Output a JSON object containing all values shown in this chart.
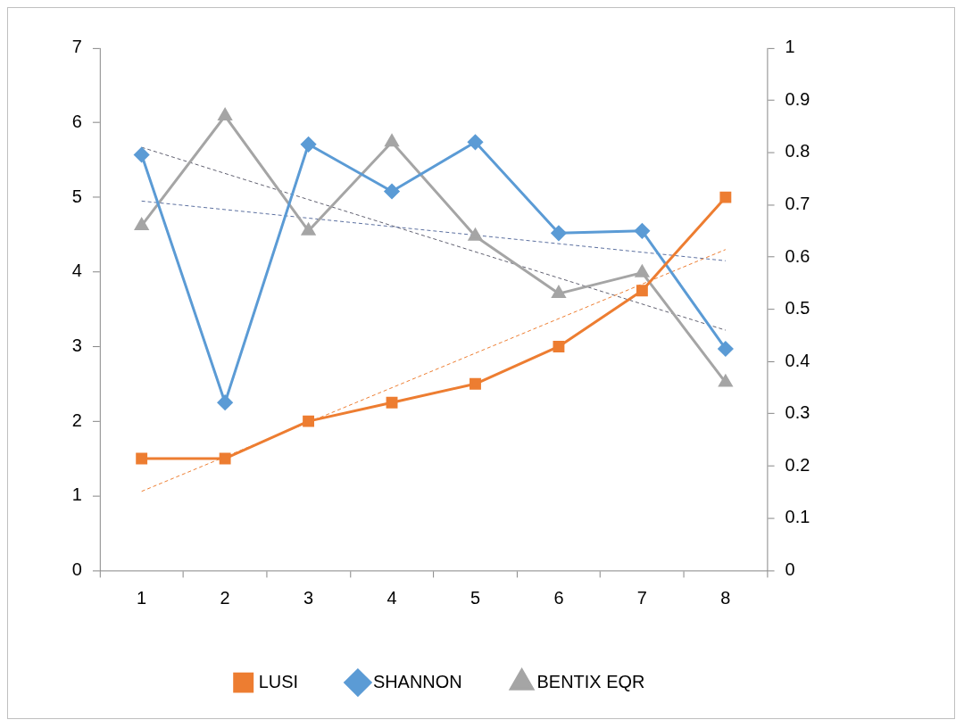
{
  "chart_data": {
    "type": "line",
    "categories": [
      "1",
      "2",
      "3",
      "4",
      "5",
      "6",
      "7",
      "8"
    ],
    "series": [
      {
        "name": "LUSI",
        "color": "#ed7d31",
        "marker": "square",
        "values": [
          1.5,
          1.5,
          2,
          2.25,
          2.5,
          3,
          3.75,
          5
        ]
      },
      {
        "name": "SHANNON",
        "color": "#5b9bd5",
        "marker": "diamond",
        "values": [
          5.57,
          2.25,
          5.71,
          5.08,
          5.74,
          4.52,
          4.55,
          2.97
        ]
      },
      {
        "name": "BENTIX EQR",
        "color": "#a5a5a5",
        "marker": "triangle",
        "axis": "y2",
        "values": [
          0.66,
          0.87,
          0.65,
          0.82,
          0.64,
          0.53,
          0.57,
          0.36
        ]
      },
      {
        "color": "#ed7d31",
        "marker": "none",
        "line_style": "dashed",
        "values": [
          1.06,
          null,
          null,
          null,
          null,
          null,
          null,
          4.3
        ]
      },
      {
        "color": "#5b6fa0",
        "marker": "none",
        "line_style": "dashed",
        "values": [
          4.95,
          null,
          null,
          null,
          null,
          null,
          null,
          4.15
        ]
      },
      {
        "color": "#5f5f6f",
        "marker": "none",
        "line_style": "dashed",
        "axis": "y2",
        "values": [
          0.81,
          null,
          null,
          null,
          null,
          null,
          null,
          0.46
        ]
      }
    ],
    "ylim": [
      0,
      7
    ],
    "yticks": [
      0,
      1,
      2,
      3,
      4,
      5,
      6,
      7
    ],
    "y2lim": [
      0,
      1
    ],
    "y2ticks": [
      0,
      0.1,
      0.2,
      0.3,
      0.4,
      0.5,
      0.6,
      0.7,
      0.8,
      0.9,
      1
    ],
    "grid": false,
    "legend": "bottom"
  }
}
